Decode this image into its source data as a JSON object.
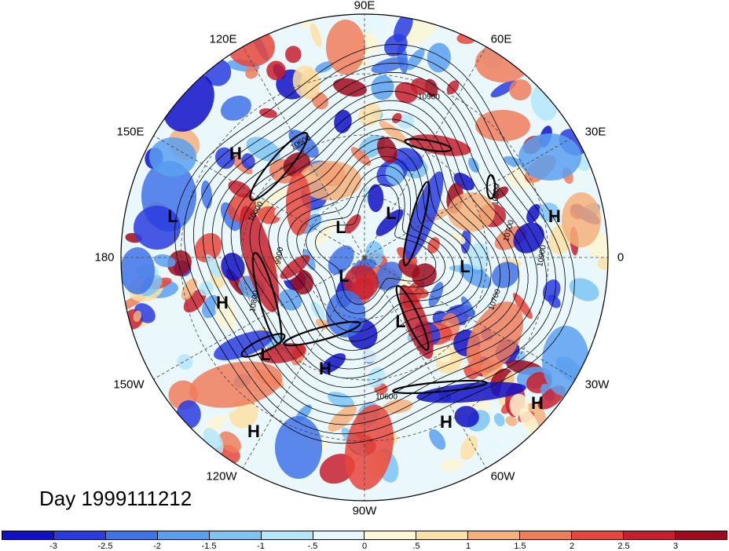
{
  "title": "Day 1999111212",
  "longitude_labels": [
    {
      "text": "90E",
      "pos": "top"
    },
    {
      "text": "60E",
      "pos": "top-right-upper"
    },
    {
      "text": "30E",
      "pos": "top-right"
    },
    {
      "text": "0",
      "pos": "right"
    },
    {
      "text": "30W",
      "pos": "bottom-right"
    },
    {
      "text": "60W",
      "pos": "bottom-right-lower"
    },
    {
      "text": "90W",
      "pos": "bottom"
    },
    {
      "text": "120W",
      "pos": "bottom-left-lower"
    },
    {
      "text": "150W",
      "pos": "bottom-left"
    },
    {
      "text": "180",
      "pos": "left"
    },
    {
      "text": "150E",
      "pos": "top-left"
    },
    {
      "text": "120E",
      "pos": "top-left-upper"
    }
  ],
  "pressure_centers": [
    {
      "type": "H",
      "label": "H"
    },
    {
      "type": "L",
      "label": "L"
    },
    {
      "type": "L",
      "label": "L"
    },
    {
      "type": "L",
      "label": "L"
    },
    {
      "type": "H",
      "label": "H"
    },
    {
      "type": "L",
      "label": "L"
    },
    {
      "type": "H",
      "label": "H"
    },
    {
      "type": "L",
      "label": "L"
    },
    {
      "type": "L",
      "label": "L"
    },
    {
      "type": "L",
      "label": "L"
    },
    {
      "type": "H",
      "label": "H"
    },
    {
      "type": "H",
      "label": "H"
    },
    {
      "type": "H",
      "label": "H"
    },
    {
      "type": "H",
      "label": "H"
    }
  ],
  "contour_labels": [
    "10900",
    "10600",
    "9900",
    "10800",
    "10600",
    "10700",
    "10900",
    "10700",
    "10800",
    "10600"
  ],
  "colorbar": {
    "ticks": [
      "-3",
      "-2.5",
      "-2",
      "-1.5",
      "-1",
      "-.5",
      "0",
      ".5",
      "1",
      "1.5",
      "2",
      "2.5",
      "3"
    ],
    "colors": [
      "#1010c8",
      "#2a3ce0",
      "#3f73e8",
      "#5aa0f0",
      "#7dc4f5",
      "#b4e6fa",
      "#e6f8fd",
      "#fdf6d4",
      "#fbe1a5",
      "#f6b07a",
      "#f07d5a",
      "#e6463c",
      "#c81e2d",
      "#a00a1e"
    ]
  }
}
